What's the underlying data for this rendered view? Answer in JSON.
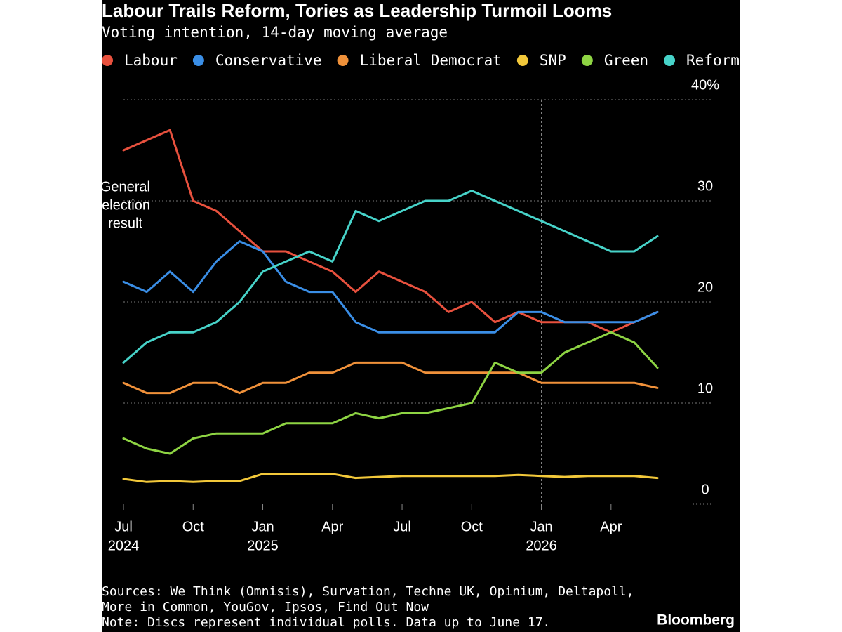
{
  "chart_data": {
    "type": "line",
    "title": "Labour Trails Reform, Tories as Leadership Turmoil Looms",
    "subtitle": "Voting intention, 14-day moving average",
    "x": [
      "2024-07",
      "2024-08",
      "2024-09",
      "2024-10",
      "2024-11",
      "2024-12",
      "2025-01",
      "2025-02",
      "2025-03",
      "2025-04",
      "2025-05",
      "2025-06",
      "2025-07",
      "2025-08",
      "2025-09",
      "2025-10",
      "2025-11",
      "2025-12",
      "2026-01",
      "2026-02",
      "2026-03",
      "2026-04",
      "2026-05",
      "2026-06"
    ],
    "series": [
      {
        "name": "Labour",
        "color": "#e8513e",
        "values": [
          35,
          36,
          37,
          30,
          29,
          27,
          25,
          25,
          24,
          23,
          21,
          23,
          22,
          21,
          19,
          20,
          18,
          19,
          18,
          18,
          18,
          17,
          18,
          19
        ]
      },
      {
        "name": "Conservative",
        "color": "#3a8ee6",
        "values": [
          22,
          21,
          23,
          21,
          24,
          26,
          25,
          22,
          21,
          21,
          18,
          17,
          17,
          17,
          17,
          17,
          17,
          19,
          19,
          18,
          18,
          18,
          18,
          19
        ]
      },
      {
        "name": "Liberal Democrat",
        "color": "#f0913a",
        "values": [
          12,
          11,
          11,
          12,
          12,
          11,
          12,
          12,
          13,
          13,
          14,
          14,
          14,
          13,
          13,
          13,
          13,
          13,
          12,
          12,
          12,
          12,
          12,
          11.5
        ]
      },
      {
        "name": "SNP",
        "color": "#f2c83a",
        "values": [
          2.5,
          2.2,
          2.3,
          2.2,
          2.3,
          2.3,
          3,
          3,
          3,
          3,
          2.6,
          2.7,
          2.8,
          2.8,
          2.8,
          2.8,
          2.8,
          2.9,
          2.8,
          2.7,
          2.8,
          2.8,
          2.8,
          2.6
        ]
      },
      {
        "name": "Green",
        "color": "#8ed443",
        "values": [
          6.5,
          5.5,
          5,
          6.5,
          7,
          7,
          7,
          8,
          8,
          8,
          9,
          8.5,
          9,
          9,
          9.5,
          10,
          14,
          13,
          13,
          15,
          16,
          17,
          16,
          13.5
        ]
      },
      {
        "name": "Reform UK",
        "color": "#47d3c9",
        "values": [
          14,
          16,
          17,
          17,
          18,
          20,
          23,
          24,
          25,
          24,
          29,
          28,
          29,
          30,
          30,
          31,
          30,
          29,
          28,
          27,
          26,
          25,
          25,
          26.5
        ]
      }
    ],
    "xlim": [
      "2024-07",
      "2026-06"
    ],
    "xticks": [
      {
        "value": "2024-07",
        "label": "Jul",
        "year": "2024"
      },
      {
        "value": "2024-10",
        "label": "Oct"
      },
      {
        "value": "2025-01",
        "label": "Jan",
        "year": "2025"
      },
      {
        "value": "2025-04",
        "label": "Apr"
      },
      {
        "value": "2025-07",
        "label": "Jul"
      },
      {
        "value": "2025-10",
        "label": "Oct"
      },
      {
        "value": "2026-01",
        "label": "Jan",
        "year": "2026"
      },
      {
        "value": "2026-04",
        "label": "Apr"
      }
    ],
    "ylim": [
      0,
      40
    ],
    "yticks": [
      0,
      10,
      20,
      30,
      {
        "value": 40,
        "label": "40%"
      }
    ],
    "grid": true,
    "vline": "2026-01",
    "annotation": [
      "General",
      "election",
      "result"
    ],
    "sources": [
      "Sources: We Think (Omnisis), Survation, Techne UK, Opinium, Deltapoll,",
      "More in Common, YouGov, Ipsos, Find Out Now",
      "Note: Discs represent individual polls. Data up to June 17."
    ],
    "brand": "Bloomberg"
  }
}
